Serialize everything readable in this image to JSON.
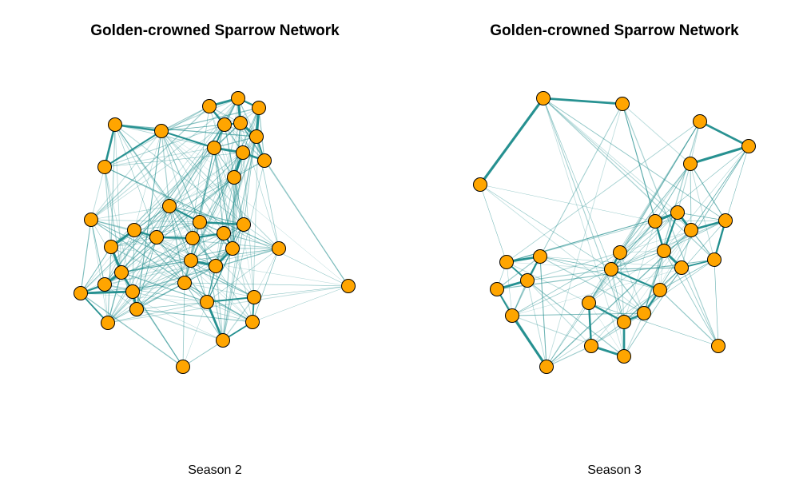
{
  "panels": [
    {
      "title": "Golden-crowned Sparrow Network",
      "caption": "Season 2"
    },
    {
      "title": "Golden-crowned Sparrow Network",
      "caption": "Season 3"
    }
  ],
  "colors": {
    "node_fill": "#FFA500",
    "node_stroke": "#000000",
    "edge": "#1E8C8C"
  }
}
